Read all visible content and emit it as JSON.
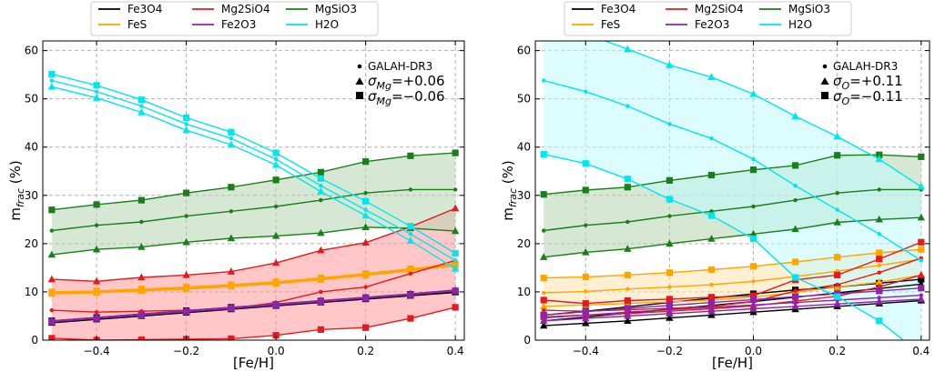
{
  "chart_data": [
    {
      "type": "line",
      "title": "",
      "xlabel": "[Fe/H]",
      "ylabel_main": "m",
      "ylabel_sub": "frac",
      "ylabel_unit": " (%)",
      "xlim": [
        -0.52,
        0.42
      ],
      "ylim": [
        0,
        62
      ],
      "xticks": [
        -0.4,
        -0.2,
        0.0,
        0.2,
        0.4
      ],
      "xtick_labels": [
        "−0.4",
        "−0.2",
        "0.0",
        "0.2",
        "0.4"
      ],
      "yticks": [
        0,
        10,
        20,
        30,
        40,
        50,
        60
      ],
      "ytick_labels": [
        "0",
        "10",
        "20",
        "30",
        "40",
        "50",
        "60"
      ],
      "grid": true,
      "legend_position": "top (above plot)",
      "annotation": {
        "base_label": "GALAH-DR3",
        "sym": "σ",
        "sub": "Mg",
        "plus_value": "=+0.06",
        "minus_value": "=−0.06"
      },
      "x": [
        -0.5,
        -0.4,
        -0.3,
        -0.2,
        -0.1,
        0.0,
        0.1,
        0.2,
        0.3,
        0.4
      ],
      "series": [
        {
          "name": "Fe3O4",
          "color": "#000000",
          "base": [
            3.8,
            4.5,
            5.2,
            5.9,
            6.6,
            7.2,
            7.9,
            8.6,
            9.3,
            10.0
          ],
          "plus": [
            3.6,
            4.3,
            5.0,
            5.7,
            6.4,
            7.1,
            7.8,
            8.5,
            9.2,
            9.9
          ],
          "minus": [
            4.0,
            4.7,
            5.4,
            6.1,
            6.8,
            7.4,
            8.1,
            8.8,
            9.5,
            10.2
          ]
        },
        {
          "name": "FeS",
          "color": "#FFA500",
          "base": [
            9.8,
            10.0,
            10.4,
            10.8,
            11.3,
            11.9,
            12.7,
            13.6,
            14.6,
            15.6
          ],
          "plus": [
            9.6,
            9.8,
            10.2,
            10.6,
            11.1,
            11.7,
            12.5,
            13.4,
            14.4,
            15.4
          ],
          "minus": [
            10.0,
            10.2,
            10.6,
            11.0,
            11.5,
            12.1,
            12.9,
            13.8,
            14.8,
            15.8
          ]
        },
        {
          "name": "Mg2SiO4",
          "color": "#E41A1C",
          "fill": "#FF9999",
          "base": [
            6.2,
            5.8,
            6.0,
            6.2,
            6.5,
            7.8,
            10.0,
            11.0,
            13.8,
            16.5
          ],
          "plus": [
            12.6,
            12.2,
            13.0,
            13.5,
            14.2,
            16.0,
            18.6,
            20.2,
            23.5,
            27.3
          ],
          "minus": [
            0.4,
            0.0,
            0.1,
            0.2,
            0.3,
            1.0,
            2.2,
            2.6,
            4.5,
            6.8
          ]
        },
        {
          "name": "Fe2O3",
          "color": "#8E24AA",
          "base": [
            3.9,
            4.6,
            5.3,
            6.0,
            6.7,
            7.4,
            8.1,
            8.8,
            9.5,
            10.3
          ],
          "plus": [
            4.0,
            4.7,
            5.4,
            6.1,
            6.8,
            7.5,
            8.2,
            8.9,
            9.6,
            10.4
          ],
          "minus": [
            3.8,
            4.5,
            5.2,
            5.9,
            6.6,
            7.3,
            8.0,
            8.7,
            9.4,
            10.2
          ]
        },
        {
          "name": "MgSiO3",
          "color": "#1A7F1A",
          "fill": "#B5D6B0",
          "base": [
            22.7,
            23.8,
            24.5,
            25.7,
            26.7,
            27.7,
            29.0,
            30.5,
            31.2,
            31.2
          ],
          "plus": [
            17.7,
            18.8,
            19.3,
            20.3,
            21.1,
            21.6,
            22.2,
            23.4,
            23.2,
            22.6
          ],
          "minus": [
            27.0,
            28.1,
            29.0,
            30.5,
            31.7,
            33.2,
            34.8,
            37.0,
            38.2,
            38.8
          ]
        },
        {
          "name": "H2O",
          "color": "#00E5EE",
          "base": [
            53.8,
            51.5,
            48.5,
            44.8,
            41.8,
            37.5,
            32.0,
            27.0,
            22.0,
            16.5
          ],
          "plus": [
            52.5,
            50.2,
            47.2,
            43.5,
            40.5,
            36.3,
            30.8,
            25.8,
            20.6,
            14.8
          ],
          "minus": [
            55.1,
            52.8,
            49.8,
            46.1,
            43.1,
            38.8,
            33.5,
            28.8,
            23.6,
            18.0
          ]
        }
      ]
    },
    {
      "type": "line",
      "title": "",
      "xlabel": "[Fe/H]",
      "ylabel_main": "m",
      "ylabel_sub": "frac",
      "ylabel_unit": " (%)",
      "xlim": [
        -0.52,
        0.42
      ],
      "ylim": [
        0,
        62
      ],
      "xticks": [
        -0.4,
        -0.2,
        0.0,
        0.2,
        0.4
      ],
      "xtick_labels": [
        "−0.4",
        "−0.2",
        "0.0",
        "0.2",
        "0.4"
      ],
      "yticks": [
        0,
        10,
        20,
        30,
        40,
        50,
        60
      ],
      "ytick_labels": [
        "0",
        "10",
        "20",
        "30",
        "40",
        "50",
        "60"
      ],
      "grid": true,
      "legend_position": "top (above plot)",
      "annotation": {
        "base_label": "GALAH-DR3",
        "sym": "σ",
        "sub": "O",
        "plus_value": "=+0.11",
        "minus_value": "=−0.11"
      },
      "x": [
        -0.5,
        -0.4,
        -0.3,
        -0.2,
        -0.1,
        0.0,
        0.1,
        0.2,
        0.3,
        0.4
      ],
      "series": [
        {
          "name": "Fe3O4",
          "color": "#000000",
          "base": [
            4.0,
            4.8,
            5.6,
            6.4,
            7.2,
            8.0,
            8.9,
            9.8,
            10.7,
            11.6
          ],
          "plus": [
            3.0,
            3.5,
            4.0,
            4.6,
            5.2,
            5.8,
            6.4,
            7.0,
            7.6,
            8.2
          ],
          "minus": [
            5.2,
            6.0,
            6.9,
            7.8,
            8.7,
            9.6,
            10.4,
            11.0,
            11.8,
            12.6
          ]
        },
        {
          "name": "FeS",
          "color": "#FFA500",
          "fill": "#FFE4B0",
          "base": [
            9.8,
            10.1,
            10.6,
            11.0,
            11.5,
            12.2,
            13.2,
            14.3,
            15.5,
            16.8
          ],
          "plus": [
            7.0,
            7.3,
            7.6,
            7.9,
            8.3,
            8.9,
            9.9,
            11.0,
            12.0,
            13.5
          ],
          "minus": [
            12.9,
            13.1,
            13.5,
            14.0,
            14.6,
            15.3,
            16.2,
            17.2,
            18.1,
            18.8
          ]
        },
        {
          "name": "Mg2SiO4",
          "color": "#E41A1C",
          "base": [
            6.2,
            6.0,
            6.3,
            6.6,
            7.0,
            8.0,
            10.2,
            11.5,
            14.0,
            17.0
          ],
          "plus": [
            4.8,
            5.2,
            5.5,
            6.0,
            6.5,
            7.1,
            8.1,
            9.1,
            11.0,
            13.5
          ],
          "minus": [
            8.3,
            7.6,
            8.2,
            8.5,
            8.9,
            9.2,
            12.5,
            13.5,
            16.8,
            20.3
          ]
        },
        {
          "name": "Fe2O3",
          "color": "#8E24AA",
          "base": [
            4.6,
            5.2,
            5.8,
            6.3,
            6.8,
            7.3,
            7.8,
            8.3,
            8.8,
            9.3
          ],
          "plus": [
            4.0,
            4.5,
            5.0,
            5.5,
            6.0,
            6.5,
            7.0,
            7.5,
            8.0,
            8.5
          ],
          "minus": [
            5.2,
            5.9,
            6.6,
            7.2,
            7.8,
            8.4,
            9.0,
            9.6,
            10.2,
            10.8
          ]
        },
        {
          "name": "MgSiO3",
          "color": "#1A7F1A",
          "fill": "#B5D6B0",
          "base": [
            22.7,
            23.8,
            24.5,
            25.7,
            26.7,
            27.7,
            29.0,
            30.5,
            31.2,
            31.2
          ],
          "plus": [
            17.2,
            18.2,
            18.9,
            20.0,
            21.0,
            22.0,
            23.0,
            24.4,
            25.0,
            25.4
          ],
          "minus": [
            30.2,
            31.1,
            31.7,
            33.1,
            34.2,
            35.3,
            36.2,
            38.3,
            38.4,
            38.0
          ]
        },
        {
          "name": "H2O",
          "color": "#00E5EE",
          "fill": "#BFFAFC",
          "base": [
            53.8,
            51.5,
            48.5,
            44.8,
            41.8,
            37.5,
            32.0,
            27.0,
            22.0,
            16.5
          ],
          "plus": [
            65.0,
            63.5,
            60.3,
            57.0,
            54.5,
            51.0,
            46.4,
            42.2,
            37.5,
            31.8
          ],
          "minus": [
            38.5,
            36.6,
            33.4,
            29.2,
            25.8,
            21.0,
            13.0,
            9.0,
            4.0,
            -3.0
          ]
        }
      ]
    }
  ]
}
